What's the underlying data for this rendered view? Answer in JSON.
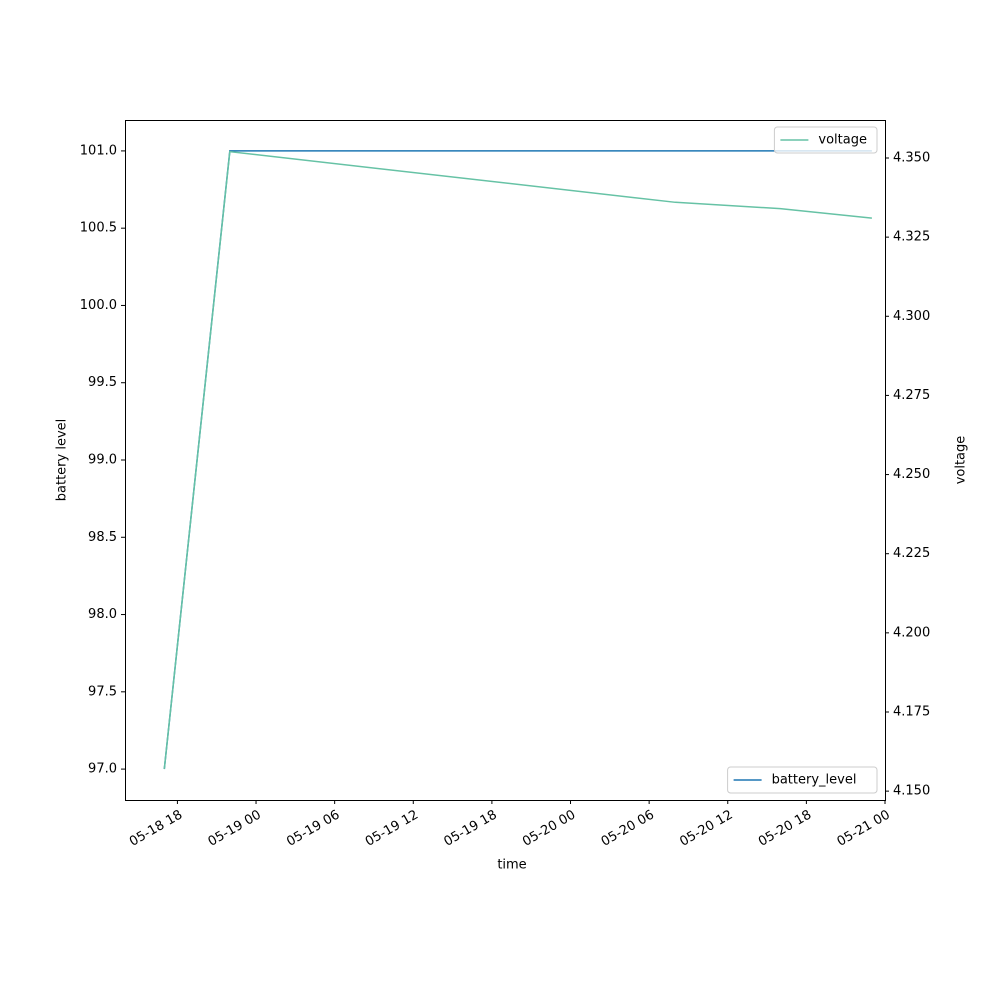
{
  "chart_data": {
    "type": "line",
    "x_label": "time",
    "y_label": "battery level",
    "y2_label": "voltage",
    "x": [
      "05-18 17",
      "05-18 22",
      "05-20 08",
      "05-20 16",
      "05-20 23"
    ],
    "xlim": [
      "05-18 14",
      "05-21 00"
    ],
    "xticks": [
      "05-18 18",
      "05-19 00",
      "05-19 06",
      "05-19 12",
      "05-19 18",
      "05-20 00",
      "05-20 06",
      "05-20 12",
      "05-20 18",
      "05-21 00"
    ],
    "ylim": [
      96.8,
      101.2
    ],
    "yticks": [
      {
        "value": 97,
        "label": "97.0"
      },
      97.5,
      {
        "value": 98,
        "label": "98.0"
      },
      98.5,
      {
        "value": 99,
        "label": "99.0"
      },
      99.5,
      {
        "value": 100,
        "label": "100.0"
      },
      100.5,
      {
        "value": 101,
        "label": "101.0"
      }
    ],
    "y2lim": [
      4.1472,
      4.362
    ],
    "y2ticks": [
      {
        "value": 4.15,
        "label": "4.150"
      },
      4.175,
      {
        "value": 4.2,
        "label": "4.200"
      },
      4.225,
      {
        "value": 4.25,
        "label": "4.250"
      },
      4.275,
      {
        "value": 4.3,
        "label": "4.300"
      },
      4.325,
      {
        "value": 4.35,
        "label": "4.350"
      }
    ],
    "series": [
      {
        "name": "battery_level",
        "color": "#1f77b4",
        "values": [
          97,
          101,
          101,
          101,
          101
        ],
        "legend_loc": "lower right"
      },
      {
        "name": "voltage",
        "color": "#66c2a5",
        "axis": "y2",
        "values": [
          4.157,
          4.352,
          4.336,
          4.334,
          4.331
        ],
        "legend_loc": "upper right"
      }
    ]
  }
}
